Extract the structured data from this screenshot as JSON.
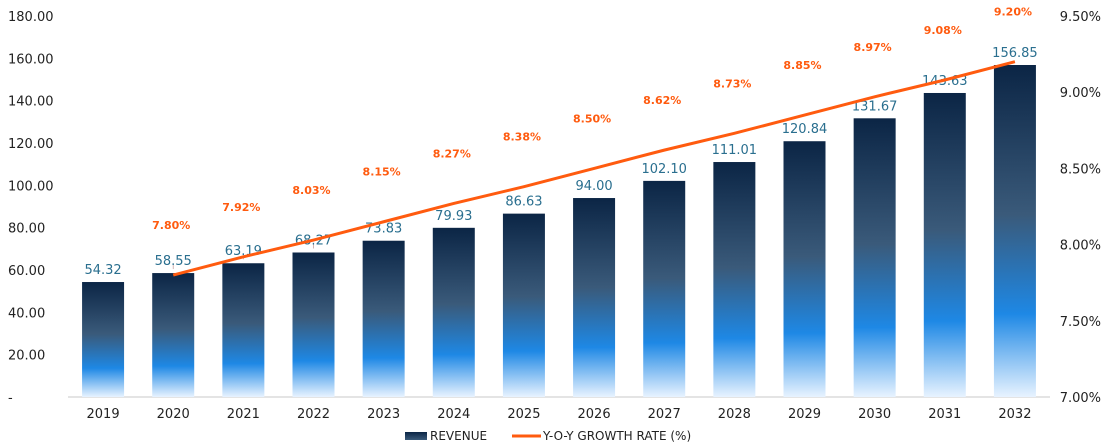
{
  "chart_data": {
    "type": "bar",
    "categories": [
      "2019",
      "2020",
      "2021",
      "2022",
      "2023",
      "2024",
      "2025",
      "2026",
      "2027",
      "2028",
      "2029",
      "2030",
      "2031",
      "2032"
    ],
    "series": [
      {
        "name": "REVENUE",
        "type": "bar",
        "axis": "left",
        "values": [
          54.32,
          58.55,
          63.19,
          68.27,
          73.83,
          79.93,
          86.63,
          94.0,
          102.1,
          111.01,
          120.84,
          131.67,
          143.63,
          156.85
        ],
        "labels": [
          "54.32",
          "58.55",
          "63.19",
          "68.27",
          "73.83",
          "79.93",
          "86.63",
          "94.00",
          "102.10",
          "111.01",
          "120.84",
          "131.67",
          "143.63",
          "156.85"
        ]
      },
      {
        "name": "Y-O-Y GROWTH RATE (%)",
        "type": "line",
        "axis": "right",
        "values": [
          null,
          7.8,
          7.92,
          8.03,
          8.15,
          8.27,
          8.38,
          8.5,
          8.62,
          8.73,
          8.85,
          8.97,
          9.08,
          9.2
        ],
        "labels": [
          "",
          "7.80%",
          "7.92%",
          "8.03%",
          "8.15%",
          "8.27%",
          "8.38%",
          "8.50%",
          "8.62%",
          "8.73%",
          "8.85%",
          "8.97%",
          "9.08%",
          "9.20%"
        ]
      }
    ],
    "y_left": {
      "ylim": [
        0,
        180
      ],
      "ticks": [
        0,
        20,
        40,
        60,
        80,
        100,
        120,
        140,
        160,
        180
      ],
      "tick_labels": [
        "-",
        "20.00",
        "40.00",
        "60.00",
        "80.00",
        "100.00",
        "120.00",
        "140.00",
        "160.00",
        "180.00"
      ]
    },
    "y_right": {
      "ylim": [
        7.0,
        9.5
      ],
      "ticks": [
        7.0,
        7.5,
        8.0,
        8.5,
        9.0,
        9.5
      ],
      "tick_labels": [
        "7.00%",
        "7.50%",
        "8.00%",
        "8.50%",
        "9.00%",
        "9.50%"
      ]
    },
    "grid": false,
    "legend_position": "bottom-center",
    "colors": {
      "bar_top": "#0b2545",
      "bar_mid": "#3a5a7a",
      "bar_blue": "#1e88e5",
      "bar_bottom": "#e8f3ff",
      "line": "#ff5b0f",
      "value_label": "#2a6f8f"
    }
  }
}
